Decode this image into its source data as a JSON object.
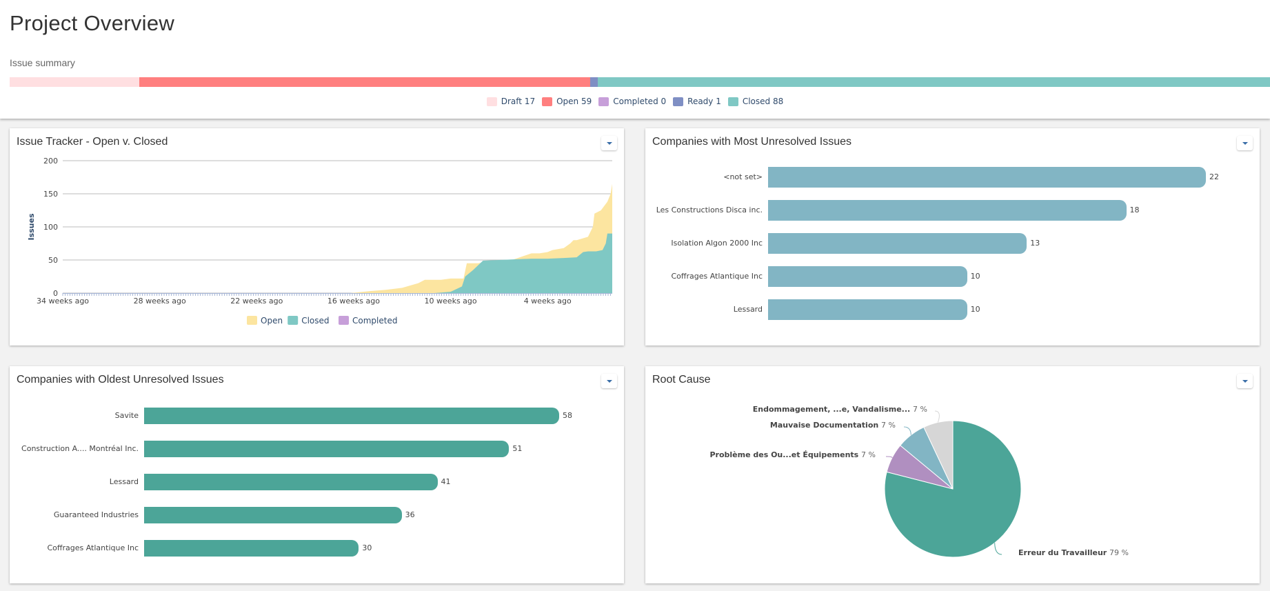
{
  "page": {
    "title": "Project Overview"
  },
  "summary": {
    "label": "Issue summary",
    "segments": [
      {
        "name": "Draft",
        "count": 17,
        "color": "#ffdfe1",
        "legend": "Draft 17"
      },
      {
        "name": "Open",
        "count": 59,
        "color": "#ff7f7f",
        "legend": "Open 59"
      },
      {
        "name": "Completed",
        "count": 0,
        "color": "#c79fd9",
        "legend": "Completed 0"
      },
      {
        "name": "Ready",
        "count": 1,
        "color": "#7f8fc4",
        "legend": "Ready 1"
      },
      {
        "name": "Closed",
        "count": 88,
        "color": "#7fc8c4",
        "legend": "Closed 88"
      }
    ]
  },
  "cards": {
    "tracker": {
      "title": "Issue Tracker - Open v. Closed"
    },
    "most": {
      "title": "Companies with Most Unresolved Issues"
    },
    "oldest": {
      "title": "Companies with Oldest Unresolved Issues"
    },
    "root": {
      "title": "Root Cause"
    }
  },
  "chart_data": [
    {
      "type": "area",
      "title": "Issue Tracker - Open v. Closed",
      "xlabel": "",
      "ylabel": "Issues",
      "ylim": [
        0,
        200
      ],
      "yticks": [
        0,
        50,
        100,
        150,
        200
      ],
      "xlim": [
        -34,
        0
      ],
      "xticks": [
        {
          "x": -34,
          "label": "34 weeks ago"
        },
        {
          "x": -28,
          "label": "28 weeks ago"
        },
        {
          "x": -22,
          "label": "22 weeks ago"
        },
        {
          "x": -16,
          "label": "16 weeks ago"
        },
        {
          "x": -10,
          "label": "10 weeks ago"
        },
        {
          "x": -4,
          "label": "4 weeks ago"
        }
      ],
      "grid": true,
      "legend_position": "bottom",
      "stacked": false,
      "series": [
        {
          "name": "Open",
          "color": "#fce5a0",
          "x": [
            -34,
            -16.2,
            -15,
            -14,
            -13,
            -12,
            -11.6,
            -10.6,
            -10,
            -9.2,
            -9,
            -8.3,
            -7.6,
            -6.8,
            -6.2,
            -5,
            -4.5,
            -4,
            -3.7,
            -3,
            -2.6,
            -2.4,
            -2.2,
            -1.5,
            -1.2,
            -1.1,
            -0.7,
            -0.3,
            -0.1,
            0
          ],
          "y": [
            0,
            0,
            3,
            5,
            8,
            15,
            20,
            20,
            22,
            22,
            45,
            45,
            48,
            50,
            50,
            60,
            60,
            62,
            65,
            68,
            75,
            80,
            80,
            85,
            100,
            120,
            125,
            138,
            150,
            165
          ]
        },
        {
          "name": "Closed",
          "color": "#7fc8c4",
          "x": [
            -34,
            -11,
            -10,
            -9.3,
            -9.1,
            -8.6,
            -8,
            -7,
            -6,
            -5,
            -4,
            -3,
            -2.2,
            -1.8,
            -1.5,
            -1,
            -0.6,
            -0.4,
            -0.3,
            0
          ],
          "y": [
            0,
            0,
            2,
            10,
            25,
            35,
            49,
            50,
            51,
            52,
            52,
            53,
            54,
            62,
            63,
            63,
            65,
            75,
            90,
            90
          ]
        },
        {
          "name": "Completed",
          "color": "#c79fd9",
          "x": [
            -34,
            0
          ],
          "y": [
            0,
            0
          ]
        }
      ]
    },
    {
      "type": "bar",
      "orientation": "horizontal",
      "title": "Companies with Most Unresolved Issues",
      "color": "#82b5c4",
      "categories": [
        "<not set>",
        "Les Constructions Disca inc.",
        "Isolation Algon 2000 Inc",
        "Coffrages Atlantique Inc",
        "Lessard"
      ],
      "values": [
        22,
        18,
        13,
        10,
        10
      ],
      "xlim": [
        0,
        22
      ]
    },
    {
      "type": "bar",
      "orientation": "horizontal",
      "title": "Companies with Oldest Unresolved Issues",
      "color": "#4ca598",
      "categories": [
        "Savite",
        "Construction A.... Montréal Inc.",
        "Lessard",
        "Guaranteed Industries",
        "Coffrages Atlantique Inc"
      ],
      "values": [
        58,
        51,
        41,
        36,
        30
      ],
      "xlim": [
        0,
        58
      ]
    },
    {
      "type": "pie",
      "title": "Root Cause",
      "slices": [
        {
          "label": "Erreur du Travailleur",
          "value": 79,
          "pct_label": "79 %",
          "color": "#4ca598"
        },
        {
          "label": "Problème des Ou...et Équipements",
          "value": 7,
          "pct_label": "7 %",
          "color": "#b08fc0"
        },
        {
          "label": "Mauvaise Documentation",
          "value": 7,
          "pct_label": "7 %",
          "color": "#82b5c4"
        },
        {
          "label": "Endommagement, ...e, Vandalisme...",
          "value": 7,
          "pct_label": "7 %",
          "color": "#d6d6d6"
        }
      ]
    }
  ]
}
